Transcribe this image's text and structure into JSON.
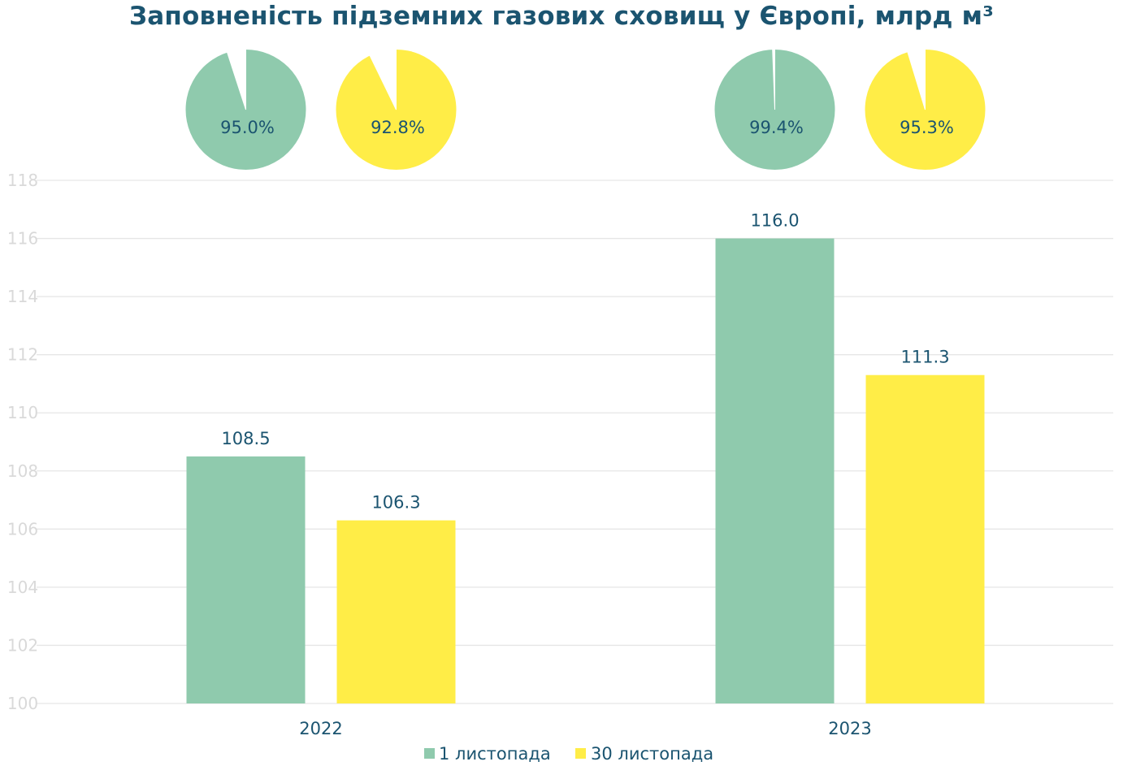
{
  "chart_data": [
    {
      "type": "bar",
      "title": "Заповненість підземних газових сховищ у Європі, млрд м³",
      "categories": [
        "2022",
        "2023"
      ],
      "series": [
        {
          "name": "1 листопада",
          "values": [
            108.5,
            116.0
          ],
          "labels": [
            "108.5",
            "116.0"
          ],
          "color": "#8fcaad"
        },
        {
          "name": "30 листопада",
          "values": [
            106.3,
            111.3
          ],
          "labels": [
            "106.3",
            "111.3"
          ],
          "color": "#ffed47"
        }
      ],
      "ylim": [
        100,
        118
      ],
      "yticks": [
        "100",
        "102",
        "104",
        "106",
        "108",
        "110",
        "112",
        "114",
        "116",
        "118"
      ],
      "grid": true,
      "legend": "bottom",
      "xlabel": "",
      "ylabel": ""
    },
    {
      "type": "pie",
      "category": "2022",
      "pies": [
        {
          "series": "1 листопада",
          "value": 95.0,
          "label": "95.0%",
          "color": "#8fcaad",
          "remainder_color": "#ffffff"
        },
        {
          "series": "30 листопада",
          "value": 92.8,
          "label": "92.8%",
          "color": "#ffed47",
          "remainder_color": "#ffffff"
        }
      ]
    },
    {
      "type": "pie",
      "category": "2023",
      "pies": [
        {
          "series": "1 листопада",
          "value": 99.4,
          "label": "99.4%",
          "color": "#8fcaad",
          "remainder_color": "#ffffff"
        },
        {
          "series": "30 листопада",
          "value": 95.3,
          "label": "95.3%",
          "color": "#ffed47",
          "remainder_color": "#ffffff"
        }
      ]
    }
  ]
}
